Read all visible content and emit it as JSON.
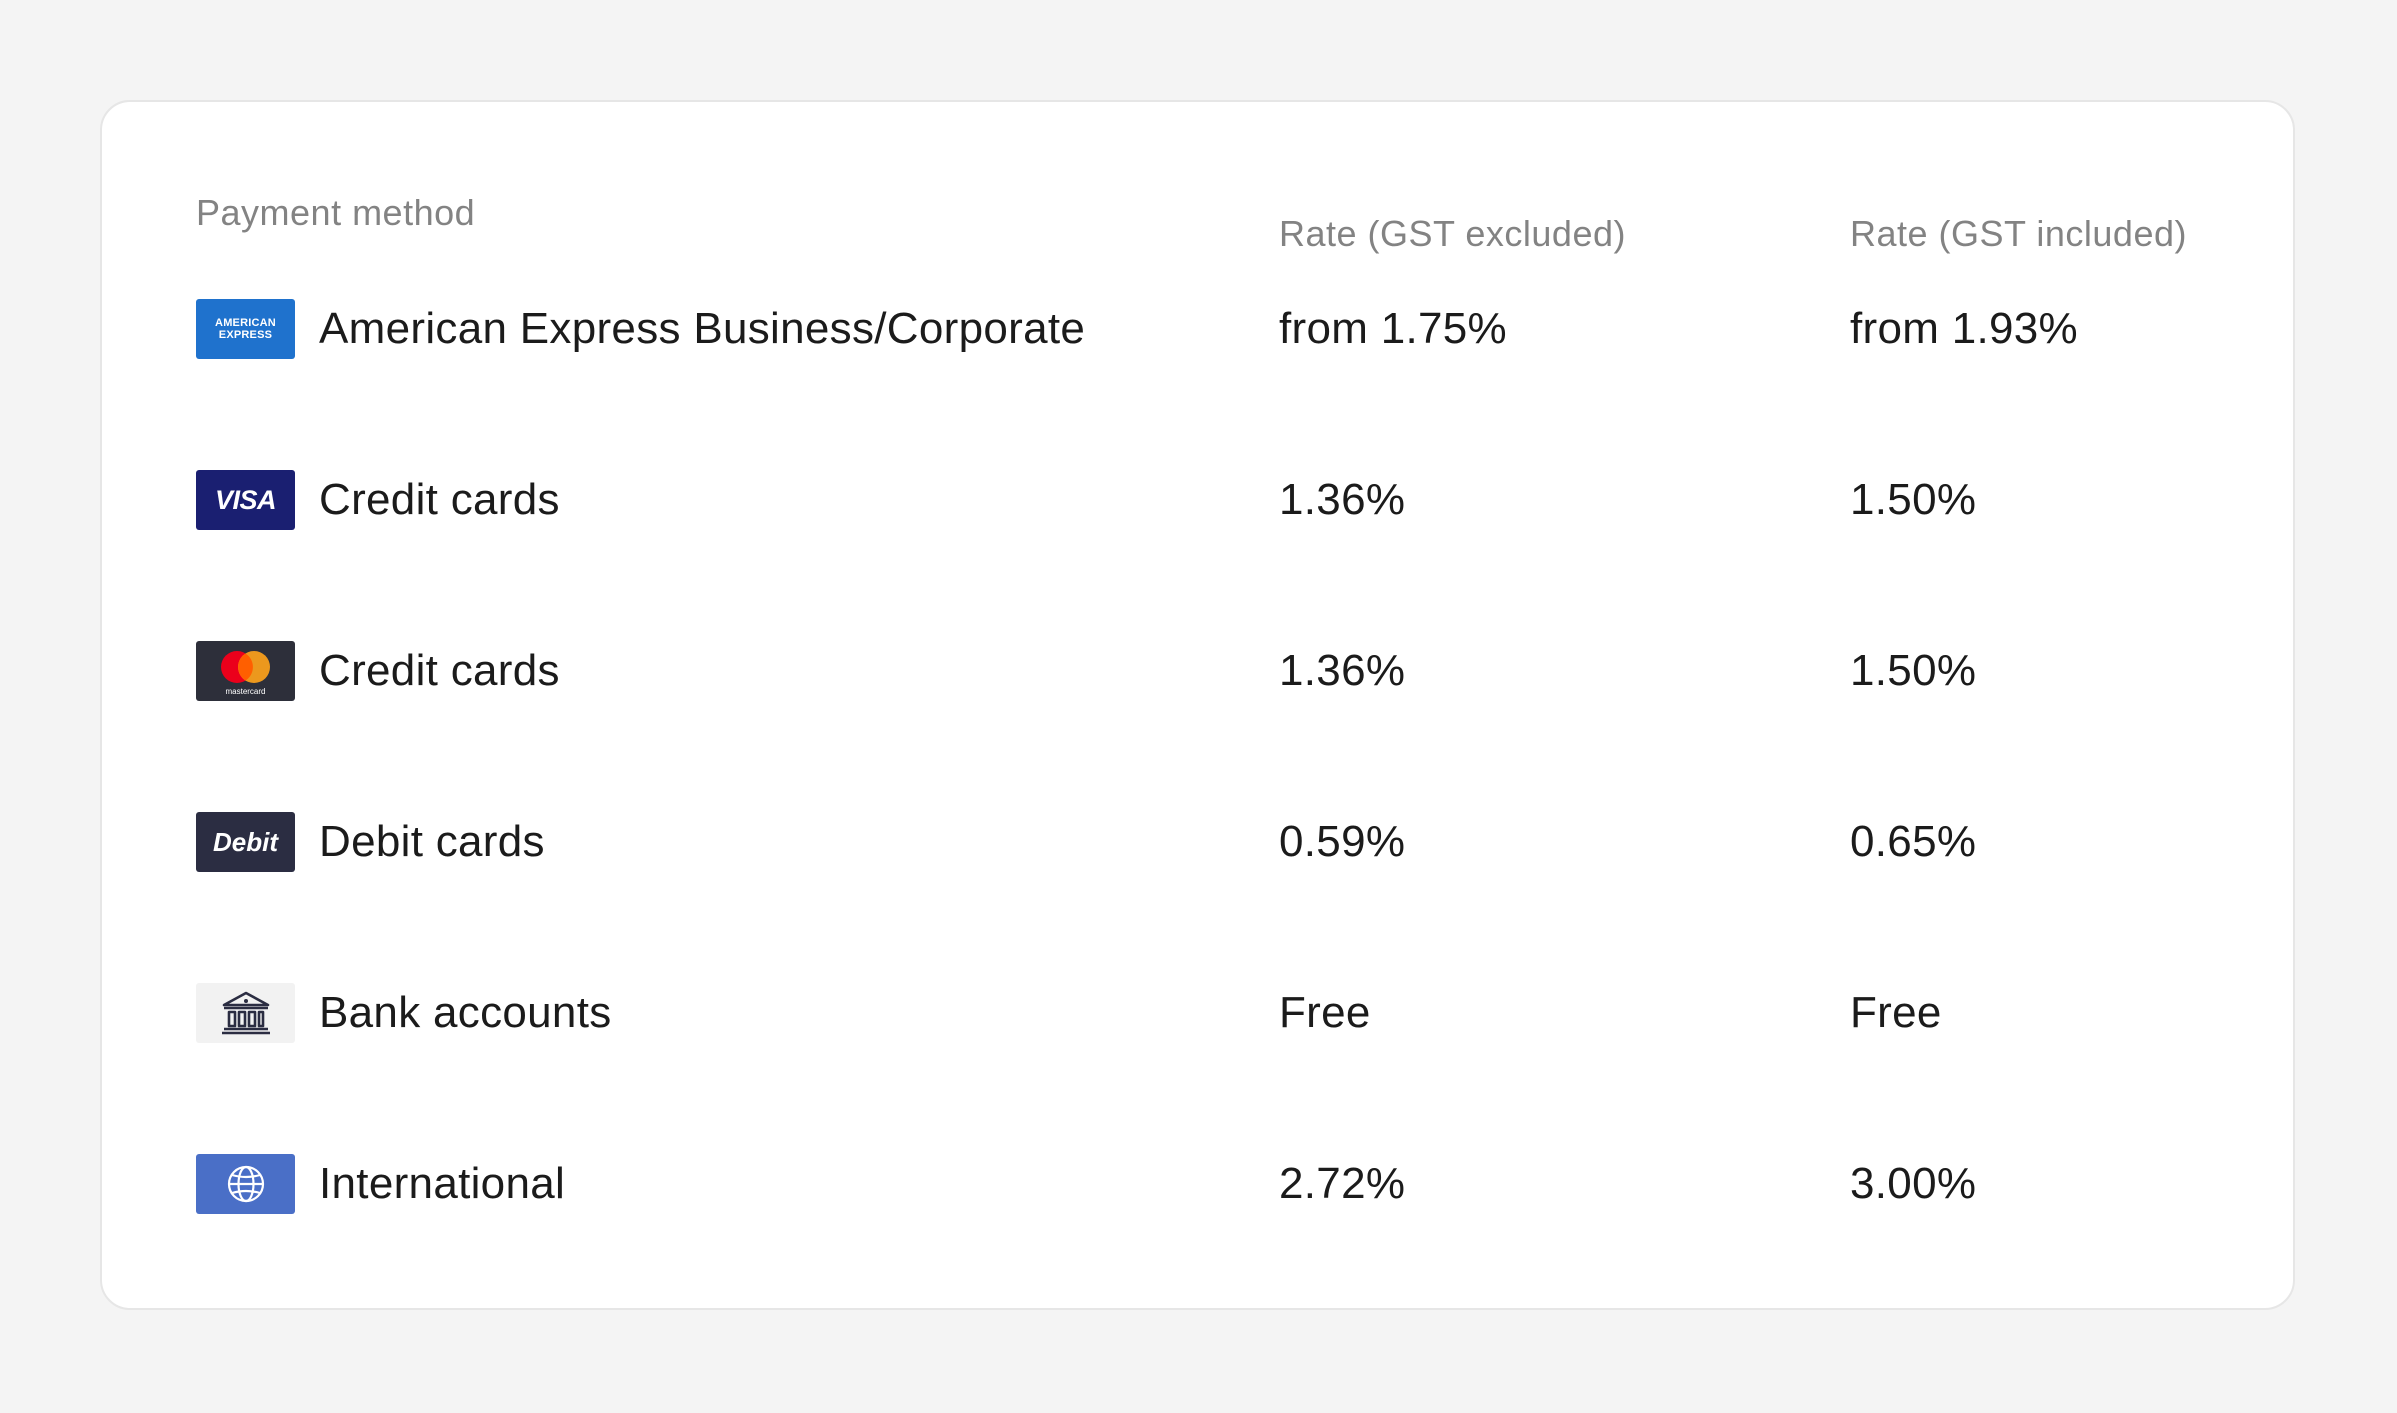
{
  "headers": {
    "payment_method": "Payment method",
    "rate_gst_excluded": "Rate (GST excluded)",
    "rate_gst_included": "Rate (GST included)"
  },
  "rows": [
    {
      "icon": "american-express-logo-icon",
      "logo_text": [
        "AMERICAN",
        "EXPRESS"
      ],
      "logo_color": "#1f72cd",
      "method": "American Express Business/Corporate",
      "rate_excluded": "from 1.75%",
      "rate_included": "from 1.93%"
    },
    {
      "icon": "visa-logo-icon",
      "logo_text": "VISA",
      "logo_color": "#1a1f71",
      "method": "Credit cards",
      "rate_excluded": "1.36%",
      "rate_included": "1.50%"
    },
    {
      "icon": "mastercard-logo-icon",
      "logo_text": "mastercard",
      "logo_color": "#2d2f3a",
      "method": "Credit cards",
      "rate_excluded": "1.36%",
      "rate_included": "1.50%"
    },
    {
      "icon": "debit-logo-icon",
      "logo_text": "Debit",
      "logo_color": "#2b2d42",
      "method": "Debit cards",
      "rate_excluded": "0.59%",
      "rate_included": "0.65%"
    },
    {
      "icon": "bank-icon",
      "logo_color": "#f2f2f2",
      "method": "Bank accounts",
      "rate_excluded": "Free",
      "rate_included": "Free"
    },
    {
      "icon": "globe-icon",
      "logo_color": "#4a6fc7",
      "method": "International",
      "rate_excluded": "2.72%",
      "rate_included": "3.00%"
    }
  ]
}
